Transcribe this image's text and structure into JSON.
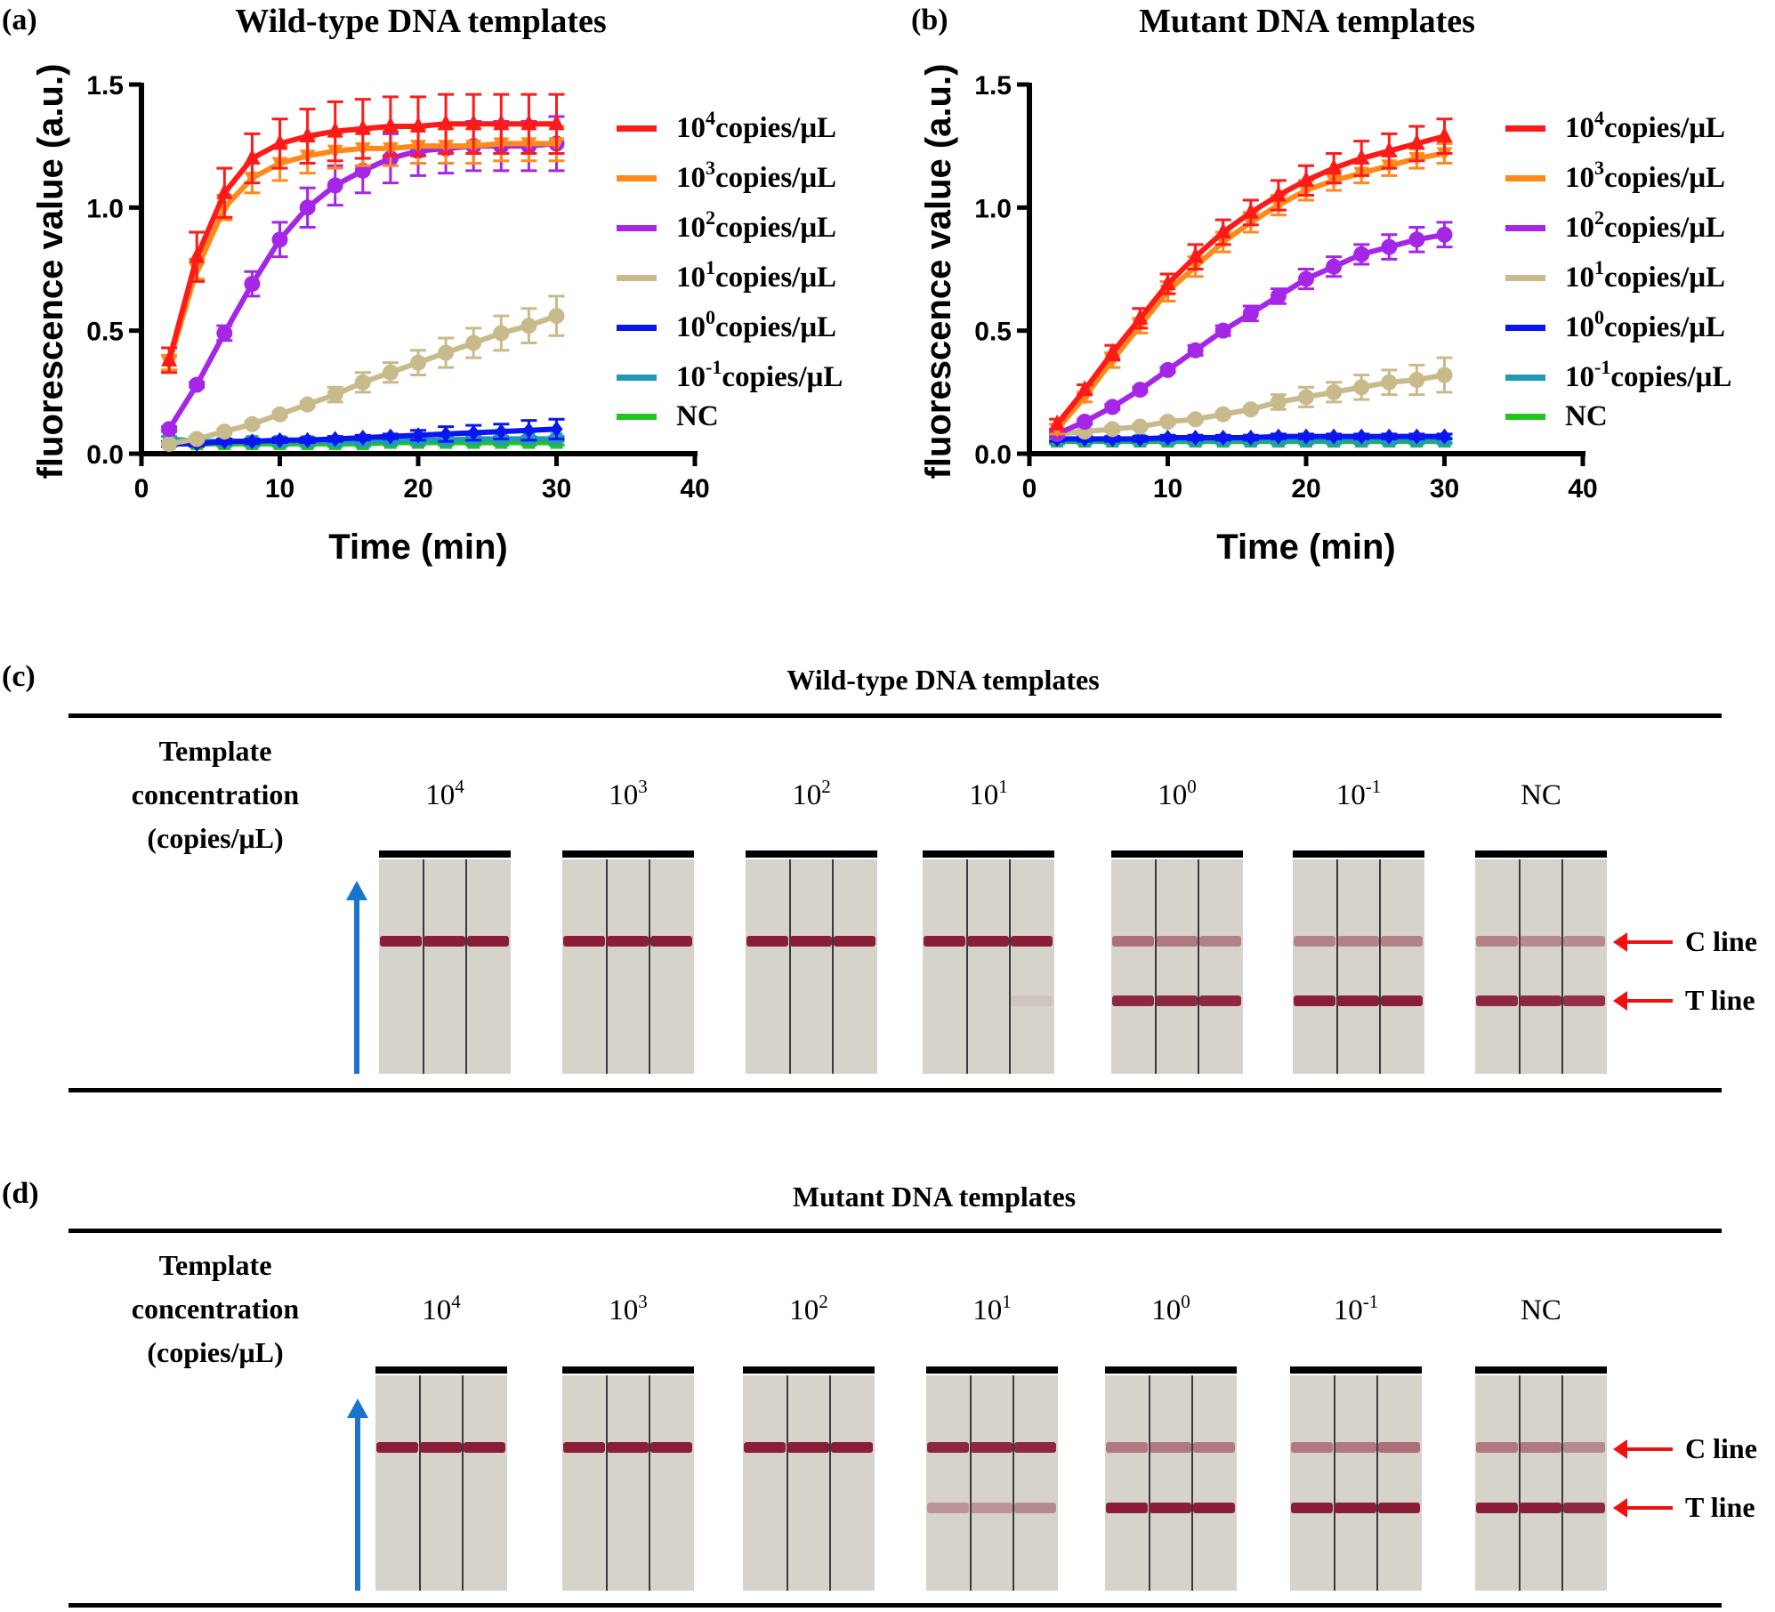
{
  "panels": {
    "a": {
      "label": "(a)",
      "title": "Wild-type DNA templates"
    },
    "b": {
      "label": "(b)",
      "title": "Mutant DNA templates"
    },
    "c": {
      "label": "(c)",
      "title": "Wild-type DNA templates"
    },
    "d": {
      "label": "(d)",
      "title": "Mutant DNA templates"
    }
  },
  "strip_section": {
    "row_label": [
      "Template",
      "concentration",
      "(copies/μL)"
    ],
    "concentrations": [
      {
        "base": "10",
        "exp": "4"
      },
      {
        "base": "10",
        "exp": "3"
      },
      {
        "base": "10",
        "exp": "2"
      },
      {
        "base": "10",
        "exp": "1"
      },
      {
        "base": "10",
        "exp": "0"
      },
      {
        "base": "10",
        "exp": "-1"
      },
      {
        "base": "NC",
        "exp": ""
      }
    ],
    "c_line_label": "C line",
    "t_line_label": "T line",
    "band_color": "#8a1e3a",
    "flow_arrow_color": "#1874cd",
    "wild_type_bands": {
      "c_intensity": [
        [
          1,
          1,
          1
        ],
        [
          1,
          1,
          1
        ],
        [
          1,
          1,
          1
        ],
        [
          1,
          1,
          1
        ],
        [
          0.55,
          0.5,
          0.45
        ],
        [
          0.45,
          0.45,
          0.45
        ],
        [
          0.45,
          0.4,
          0.4
        ]
      ],
      "t_intensity": [
        [
          0,
          0,
          0
        ],
        [
          0,
          0,
          0
        ],
        [
          0,
          0,
          0
        ],
        [
          0,
          0,
          0.08
        ],
        [
          0.95,
          0.95,
          0.95
        ],
        [
          1,
          1,
          1
        ],
        [
          0.95,
          0.95,
          0.9
        ]
      ]
    },
    "mutant_bands": {
      "c_intensity": [
        [
          1,
          1,
          1
        ],
        [
          1,
          1,
          1
        ],
        [
          1,
          1,
          1
        ],
        [
          0.95,
          0.95,
          0.95
        ],
        [
          0.5,
          0.5,
          0.5
        ],
        [
          0.5,
          0.5,
          0.55
        ],
        [
          0.5,
          0.5,
          0.4
        ]
      ],
      "t_intensity": [
        [
          0,
          0,
          0
        ],
        [
          0,
          0,
          0
        ],
        [
          0,
          0,
          0
        ],
        [
          0.35,
          0.35,
          0.4
        ],
        [
          1,
          1,
          1
        ],
        [
          1,
          1,
          1
        ],
        [
          1,
          1,
          0.95
        ]
      ]
    }
  },
  "chart_data": [
    {
      "type": "line",
      "title": "Wild-type DNA templates",
      "xlabel": "Time (min)",
      "ylabel": "fluorescence value (a.u.)",
      "xlim": [
        0,
        40
      ],
      "ylim": [
        0,
        1.5
      ],
      "xticks": [
        "0",
        "10",
        "20",
        "30",
        "40"
      ],
      "yticks": [
        "0.0",
        "0.5",
        "1.0",
        "1.5"
      ],
      "legend_position": "right",
      "grid": false,
      "x": [
        2,
        4,
        6,
        8,
        10,
        12,
        14,
        16,
        18,
        20,
        22,
        24,
        26,
        28,
        30
      ],
      "series": [
        {
          "name": {
            "base": "10",
            "exp": "4",
            "unit": "copies/μL"
          },
          "color": "#ff1a1a",
          "marker": "triangle-up",
          "values": [
            0.38,
            0.8,
            1.06,
            1.2,
            1.26,
            1.29,
            1.31,
            1.32,
            1.33,
            1.33,
            1.34,
            1.34,
            1.34,
            1.34,
            1.34
          ],
          "error": [
            0.05,
            0.1,
            0.1,
            0.1,
            0.1,
            0.11,
            0.12,
            0.12,
            0.12,
            0.12,
            0.12,
            0.12,
            0.12,
            0.12,
            0.12
          ]
        },
        {
          "name": {
            "base": "10",
            "exp": "3",
            "unit": "copies/μL"
          },
          "color": "#ff8a1a",
          "marker": "triangle-down",
          "values": [
            0.37,
            0.75,
            1.0,
            1.12,
            1.18,
            1.21,
            1.23,
            1.24,
            1.24,
            1.25,
            1.25,
            1.25,
            1.26,
            1.26,
            1.26
          ],
          "error": [
            0.03,
            0.04,
            0.05,
            0.06,
            0.07,
            0.07,
            0.07,
            0.07,
            0.07,
            0.07,
            0.07,
            0.07,
            0.07,
            0.07,
            0.07
          ]
        },
        {
          "name": {
            "base": "10",
            "exp": "2",
            "unit": "copies/μL"
          },
          "color": "#a526e6",
          "marker": "circle",
          "values": [
            0.1,
            0.28,
            0.49,
            0.69,
            0.87,
            1.0,
            1.09,
            1.15,
            1.2,
            1.23,
            1.24,
            1.25,
            1.25,
            1.25,
            1.26
          ],
          "error": [
            0.01,
            0.01,
            0.03,
            0.05,
            0.07,
            0.08,
            0.08,
            0.09,
            0.1,
            0.1,
            0.1,
            0.1,
            0.1,
            0.1,
            0.11
          ]
        },
        {
          "name": {
            "base": "10",
            "exp": "1",
            "unit": "copies/μL"
          },
          "color": "#c9ba8c",
          "marker": "circle",
          "values": [
            0.04,
            0.06,
            0.09,
            0.12,
            0.16,
            0.2,
            0.24,
            0.29,
            0.33,
            0.37,
            0.41,
            0.45,
            0.49,
            0.52,
            0.56
          ],
          "error": [
            0.0,
            0.01,
            0.01,
            0.01,
            0.01,
            0.01,
            0.03,
            0.04,
            0.04,
            0.05,
            0.06,
            0.06,
            0.07,
            0.07,
            0.08
          ]
        },
        {
          "name": {
            "base": "10",
            "exp": "0",
            "unit": "copies/μL"
          },
          "color": "#0a16f0",
          "marker": "diamond",
          "values": [
            0.04,
            0.04,
            0.05,
            0.05,
            0.055,
            0.055,
            0.06,
            0.065,
            0.07,
            0.075,
            0.08,
            0.085,
            0.09,
            0.095,
            0.1
          ],
          "error": [
            0.01,
            0.01,
            0.01,
            0.01,
            0.01,
            0.01,
            0.01,
            0.01,
            0.01,
            0.02,
            0.03,
            0.03,
            0.03,
            0.04,
            0.04
          ]
        },
        {
          "name": {
            "base": "10",
            "exp": "-1",
            "unit": "copies/μL"
          },
          "color": "#1f9bb6",
          "marker": "square",
          "values": [
            0.06,
            0.05,
            0.05,
            0.05,
            0.05,
            0.05,
            0.05,
            0.05,
            0.055,
            0.055,
            0.055,
            0.06,
            0.06,
            0.06,
            0.06
          ],
          "error": [
            0.01,
            0.01,
            0.01,
            0.01,
            0.01,
            0.01,
            0.01,
            0.01,
            0.01,
            0.01,
            0.01,
            0.01,
            0.01,
            0.01,
            0.01
          ]
        },
        {
          "name": {
            "base": "NC",
            "exp": "",
            "unit": ""
          },
          "color": "#22c422",
          "marker": "square",
          "values": [
            0.04,
            0.04,
            0.04,
            0.04,
            0.04,
            0.04,
            0.04,
            0.04,
            0.045,
            0.045,
            0.045,
            0.045,
            0.045,
            0.045,
            0.045
          ],
          "error": [
            0.01,
            0.01,
            0.01,
            0.01,
            0.01,
            0.01,
            0.01,
            0.01,
            0.01,
            0.01,
            0.01,
            0.01,
            0.01,
            0.01,
            0.01
          ]
        }
      ]
    },
    {
      "type": "line",
      "title": "Mutant DNA templates",
      "xlabel": "Time (min)",
      "ylabel": "fluorescence value (a.u.)",
      "xlim": [
        0,
        40
      ],
      "ylim": [
        0,
        1.5
      ],
      "xticks": [
        "0",
        "10",
        "20",
        "30",
        "40"
      ],
      "yticks": [
        "0.0",
        "0.5",
        "1.0",
        "1.5"
      ],
      "legend_position": "right",
      "grid": false,
      "x": [
        2,
        4,
        6,
        8,
        10,
        12,
        14,
        16,
        18,
        20,
        22,
        24,
        26,
        28,
        30
      ],
      "series": [
        {
          "name": {
            "base": "10",
            "exp": "4",
            "unit": "copies/μL"
          },
          "color": "#ff1a1a",
          "marker": "triangle-up",
          "values": [
            0.12,
            0.26,
            0.41,
            0.55,
            0.69,
            0.8,
            0.9,
            0.98,
            1.05,
            1.11,
            1.16,
            1.2,
            1.23,
            1.26,
            1.29
          ],
          "error": [
            0.02,
            0.02,
            0.03,
            0.04,
            0.04,
            0.05,
            0.05,
            0.05,
            0.06,
            0.06,
            0.06,
            0.07,
            0.07,
            0.07,
            0.07
          ]
        },
        {
          "name": {
            "base": "10",
            "exp": "3",
            "unit": "copies/μL"
          },
          "color": "#ff8a1a",
          "marker": "triangle-down",
          "values": [
            0.1,
            0.23,
            0.38,
            0.52,
            0.66,
            0.76,
            0.86,
            0.94,
            1.01,
            1.07,
            1.11,
            1.14,
            1.17,
            1.2,
            1.22
          ],
          "error": [
            0.02,
            0.02,
            0.03,
            0.03,
            0.04,
            0.04,
            0.04,
            0.04,
            0.04,
            0.04,
            0.04,
            0.04,
            0.04,
            0.04,
            0.04
          ]
        },
        {
          "name": {
            "base": "10",
            "exp": "2",
            "unit": "copies/μL"
          },
          "color": "#a526e6",
          "marker": "circle",
          "values": [
            0.08,
            0.13,
            0.19,
            0.26,
            0.34,
            0.42,
            0.5,
            0.57,
            0.64,
            0.71,
            0.76,
            0.81,
            0.84,
            0.87,
            0.89
          ],
          "error": [
            0.01,
            0.01,
            0.01,
            0.01,
            0.01,
            0.02,
            0.02,
            0.03,
            0.03,
            0.04,
            0.04,
            0.04,
            0.05,
            0.05,
            0.05
          ]
        },
        {
          "name": {
            "base": "10",
            "exp": "1",
            "unit": "copies/μL"
          },
          "color": "#c9ba8c",
          "marker": "circle",
          "values": [
            0.08,
            0.09,
            0.1,
            0.11,
            0.13,
            0.14,
            0.16,
            0.18,
            0.21,
            0.23,
            0.25,
            0.27,
            0.29,
            0.3,
            0.32
          ],
          "error": [
            0.01,
            0.01,
            0.01,
            0.01,
            0.01,
            0.01,
            0.01,
            0.01,
            0.03,
            0.04,
            0.04,
            0.05,
            0.05,
            0.06,
            0.07
          ]
        },
        {
          "name": {
            "base": "10",
            "exp": "0",
            "unit": "copies/μL"
          },
          "color": "#0a16f0",
          "marker": "diamond",
          "values": [
            0.06,
            0.06,
            0.06,
            0.06,
            0.065,
            0.065,
            0.065,
            0.065,
            0.07,
            0.07,
            0.07,
            0.07,
            0.07,
            0.07,
            0.07
          ],
          "error": [
            0.01,
            0.01,
            0.01,
            0.01,
            0.01,
            0.01,
            0.01,
            0.01,
            0.01,
            0.01,
            0.01,
            0.01,
            0.01,
            0.01,
            0.01
          ]
        },
        {
          "name": {
            "base": "10",
            "exp": "-1",
            "unit": "copies/μL"
          },
          "color": "#1f9bb6",
          "marker": "square",
          "values": [
            0.055,
            0.055,
            0.055,
            0.055,
            0.055,
            0.055,
            0.055,
            0.055,
            0.055,
            0.055,
            0.055,
            0.055,
            0.055,
            0.055,
            0.055
          ],
          "error": [
            0.01,
            0.01,
            0.01,
            0.01,
            0.01,
            0.01,
            0.01,
            0.01,
            0.01,
            0.01,
            0.01,
            0.01,
            0.01,
            0.01,
            0.01
          ]
        },
        {
          "name": {
            "base": "NC",
            "exp": "",
            "unit": ""
          },
          "color": "#22c422",
          "marker": "square",
          "values": [
            0.05,
            0.05,
            0.05,
            0.05,
            0.05,
            0.05,
            0.05,
            0.05,
            0.05,
            0.05,
            0.05,
            0.05,
            0.05,
            0.05,
            0.05
          ],
          "error": [
            0.01,
            0.01,
            0.01,
            0.01,
            0.01,
            0.01,
            0.01,
            0.01,
            0.01,
            0.01,
            0.01,
            0.01,
            0.01,
            0.01,
            0.01
          ]
        }
      ]
    }
  ]
}
